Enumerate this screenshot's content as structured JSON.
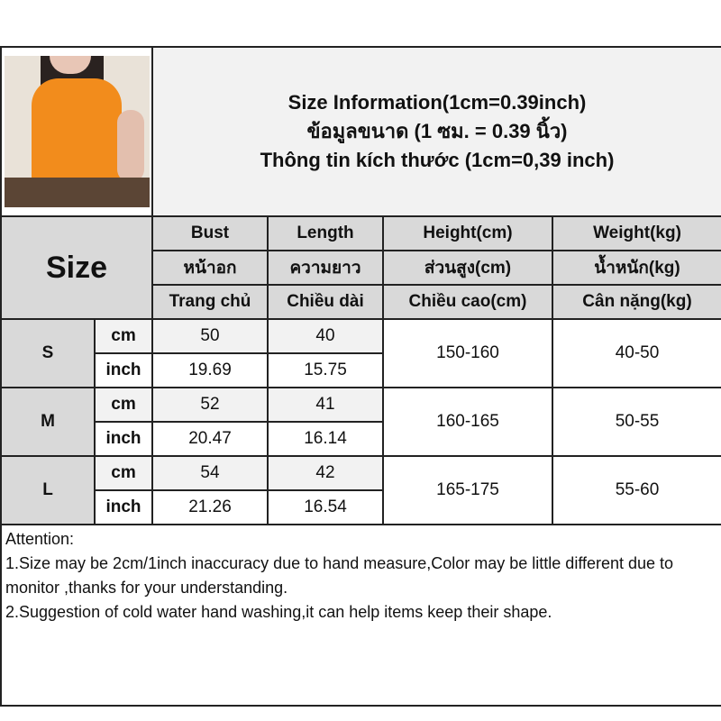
{
  "title_lines": [
    "Size Information(1cm=0.39inch)",
    "ข้อมูลขนาด (1 ซม. = 0.39 นิ้ว)",
    "Thông tin kích thước (1cm=0,39 inch)"
  ],
  "size_label": "Size",
  "headers": [
    [
      "Bust",
      "Length",
      "Height(cm)",
      "Weight(kg)"
    ],
    [
      "หน้าอก",
      "ความยาว",
      "ส่วนสูง(cm)",
      "น้ำหนัก(kg)"
    ],
    [
      "Trang chủ",
      "Chiều dài",
      "Chiều cao(cm)",
      "Cân nặng(kg)"
    ]
  ],
  "units": {
    "cm": "cm",
    "inch": "inch"
  },
  "rows": [
    {
      "size": "S",
      "cm": [
        "50",
        "40"
      ],
      "inch": [
        "19.69",
        "15.75"
      ],
      "height": "150-160",
      "weight": "40-50"
    },
    {
      "size": "M",
      "cm": [
        "52",
        "41"
      ],
      "inch": [
        "20.47",
        "16.14"
      ],
      "height": "160-165",
      "weight": "50-55"
    },
    {
      "size": "L",
      "cm": [
        "54",
        "42"
      ],
      "inch": [
        "21.26",
        "16.54"
      ],
      "height": "165-175",
      "weight": "55-60"
    }
  ],
  "notes": [
    "Attention:",
    "1.Size may be 2cm/1inch inaccuracy due to hand measure,Color may be little different due to monitor ,thanks for your understanding.",
    "2.Suggestion of cold water hand washing,it can help items keep their shape."
  ],
  "colors": {
    "header": "#d9d9d9",
    "title_bg": "#f2f2f2",
    "top_color": "#f28c1c"
  }
}
